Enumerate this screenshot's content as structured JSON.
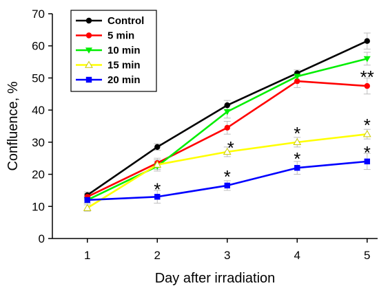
{
  "chart_data": {
    "type": "line",
    "xlabel": "Day after irradiation",
    "ylabel": "Confluence, %",
    "x": [
      1,
      2,
      3,
      4,
      5
    ],
    "xlim": [
      0.5,
      5.15
    ],
    "ylim": [
      0,
      70
    ],
    "xticks": [
      1,
      2,
      3,
      4,
      5
    ],
    "yticks": [
      0,
      10,
      20,
      30,
      40,
      50,
      60,
      70
    ],
    "grid": false,
    "legend_position": "top-left",
    "series": [
      {
        "name": "Control",
        "color": "#000000",
        "marker": "circle",
        "values": [
          13.5,
          28.5,
          41.5,
          51.5,
          61.5
        ],
        "errors": [
          1.0,
          1.0,
          1.5,
          1.0,
          2.5
        ]
      },
      {
        "name": "5 min",
        "color": "#ff0000",
        "marker": "circle",
        "values": [
          13.0,
          23.5,
          34.5,
          49.0,
          47.5
        ],
        "errors": [
          1.0,
          1.5,
          2.0,
          2.0,
          2.5
        ]
      },
      {
        "name": "10 min",
        "color": "#00ee00",
        "marker": "triangle-down",
        "values": [
          12.0,
          22.5,
          39.5,
          50.5,
          56.0
        ],
        "errors": [
          1.0,
          1.5,
          2.0,
          1.5,
          2.0
        ]
      },
      {
        "name": "15 min",
        "color": "#ffff00",
        "marker": "triangle-up",
        "values": [
          9.5,
          23.0,
          27.0,
          30.0,
          32.5
        ],
        "errors": [
          1.0,
          1.5,
          1.5,
          1.5,
          1.5
        ]
      },
      {
        "name": "20 min",
        "color": "#0000ff",
        "marker": "square",
        "values": [
          12.0,
          13.0,
          16.5,
          22.0,
          24.0
        ],
        "errors": [
          1.0,
          2.0,
          1.5,
          2.0,
          2.5
        ]
      }
    ],
    "annotations": [
      {
        "text": "*",
        "x": 2,
        "y": 15.5
      },
      {
        "text": "*",
        "x": 3,
        "y": 19.5
      },
      {
        "text": "*",
        "x": 3.05,
        "y": 28.5
      },
      {
        "text": "*",
        "x": 4,
        "y": 25.0
      },
      {
        "text": "*",
        "x": 4,
        "y": 33.0
      },
      {
        "text": "*",
        "x": 5,
        "y": 27.0
      },
      {
        "text": "*",
        "x": 5,
        "y": 35.5
      },
      {
        "text": "**",
        "x": 5,
        "y": 50.5
      }
    ]
  }
}
